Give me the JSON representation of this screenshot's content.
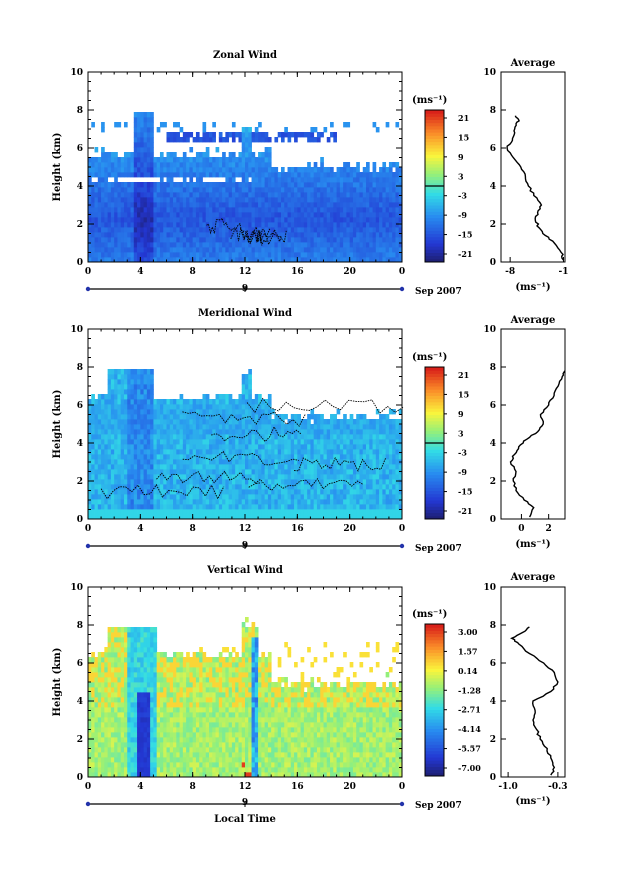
{
  "chart_data": [
    {
      "type": "heatmap",
      "title": "Zonal Wind",
      "xlabel": "",
      "ylabel": "Height (km)",
      "xlim": [
        0,
        24
      ],
      "ylim": [
        0,
        10
      ],
      "x_ticks": [
        "0",
        "4",
        "8",
        "12",
        "16",
        "20",
        "0"
      ],
      "y_ticks": [
        "0",
        "2",
        "4",
        "6",
        "8",
        "10"
      ],
      "date_marker": "9",
      "date_label": "Sep 2007",
      "colorbar": {
        "unit": "(ms⁻¹)",
        "ticks": [
          "21",
          "15",
          "9",
          "3",
          "-3",
          "-9",
          "-15",
          "-21"
        ],
        "range": [
          -24,
          24
        ]
      },
      "average": {
        "title": "Average",
        "xlabel": "(ms⁻¹)",
        "x_ticks": [
          "-8",
          "-1"
        ],
        "xlim": [
          -9.2,
          -0.8
        ],
        "heights": [
          0.1,
          0.5,
          1.0,
          1.4,
          1.8,
          2.2,
          2.6,
          3.0,
          3.5,
          4.0,
          4.5,
          5.0,
          5.5,
          6.0,
          6.4,
          6.8,
          7.2,
          7.5,
          7.7
        ],
        "values": [
          -1.0,
          -1.3,
          -2.2,
          -3.4,
          -4.2,
          -4.7,
          -4.4,
          -3.9,
          -4.9,
          -5.6,
          -6.0,
          -6.6,
          -7.6,
          -8.4,
          -7.7,
          -7.4,
          -7.2,
          -6.9,
          -7.3
        ]
      }
    },
    {
      "type": "heatmap",
      "title": "Meridional Wind",
      "xlabel": "",
      "ylabel": "Height (km)",
      "xlim": [
        0,
        24
      ],
      "ylim": [
        0,
        10
      ],
      "x_ticks": [
        "0",
        "4",
        "8",
        "12",
        "16",
        "20",
        "0"
      ],
      "y_ticks": [
        "0",
        "2",
        "4",
        "6",
        "8",
        "10"
      ],
      "date_marker": "9",
      "date_label": "Sep 2007",
      "colorbar": {
        "unit": "(ms⁻¹)",
        "ticks": [
          "21",
          "15",
          "9",
          "3",
          "-3",
          "-9",
          "-15",
          "-21"
        ],
        "range": [
          -24,
          24
        ]
      },
      "average": {
        "title": "Average",
        "xlabel": "(ms⁻¹)",
        "x_ticks": [
          "0",
          "2"
        ],
        "xlim": [
          -1.5,
          3.2
        ],
        "heights": [
          0.1,
          0.6,
          1.0,
          1.5,
          2.0,
          2.5,
          3.0,
          3.4,
          3.8,
          4.2,
          4.6,
          5.0,
          5.5,
          6.0,
          6.5,
          7.0,
          7.5,
          7.8
        ],
        "values": [
          0.6,
          0.9,
          0.2,
          -0.4,
          -0.6,
          -0.4,
          -0.8,
          -0.5,
          -0.2,
          0.4,
          1.2,
          1.6,
          1.4,
          2.0,
          2.4,
          2.7,
          3.0,
          3.2
        ]
      }
    },
    {
      "type": "heatmap",
      "title": "Vertical Wind",
      "xlabel": "Local Time",
      "ylabel": "Height (km)",
      "xlim": [
        0,
        24
      ],
      "ylim": [
        0,
        10
      ],
      "x_ticks": [
        "0",
        "4",
        "8",
        "12",
        "16",
        "20",
        "0"
      ],
      "y_ticks": [
        "0",
        "2",
        "4",
        "6",
        "8",
        "10"
      ],
      "date_marker": "9",
      "date_label": "Sep 2007",
      "colorbar": {
        "unit": "(ms⁻¹)",
        "ticks": [
          "3.00",
          "1.57",
          "0.14",
          "-1.28",
          "-2.71",
          "-4.14",
          "-5.57",
          "-7.00"
        ],
        "range": [
          -7.7,
          3.7
        ]
      },
      "average": {
        "title": "Average",
        "xlabel": "(ms⁻¹)",
        "x_ticks": [
          "-1.0",
          "-0.3"
        ],
        "xlim": [
          -1.1,
          -0.2
        ],
        "heights": [
          0.1,
          0.5,
          1.0,
          1.5,
          2.0,
          2.5,
          3.0,
          3.5,
          4.0,
          4.5,
          5.0,
          5.5,
          6.0,
          6.5,
          7.0,
          7.3,
          7.6,
          7.9
        ],
        "values": [
          -0.4,
          -0.35,
          -0.4,
          -0.45,
          -0.55,
          -0.6,
          -0.65,
          -0.62,
          -0.65,
          -0.4,
          -0.3,
          -0.35,
          -0.5,
          -0.7,
          -0.85,
          -0.95,
          -0.8,
          -0.7
        ]
      }
    }
  ]
}
